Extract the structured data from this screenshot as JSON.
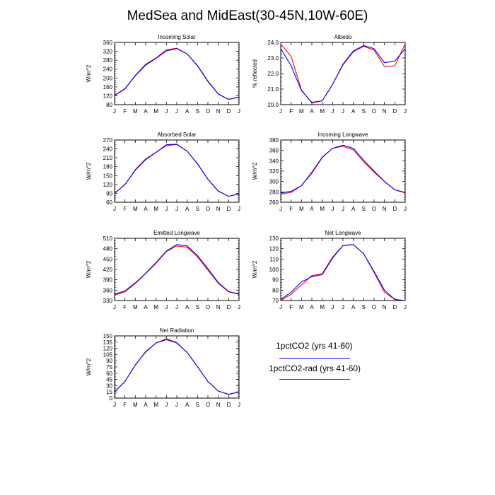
{
  "title": "MedSea and MidEast(30-45N,10W-60E)",
  "legend": [
    {
      "label": "1pctCO2 (yrs 41-60)",
      "color": "#0000ff"
    },
    {
      "label": "1pctCO2-rad (yrs 41-60)",
      "color": "#ff0000"
    }
  ],
  "chart_data": [
    {
      "type": "line",
      "title": "Incoming Solar",
      "ylabel": "W/m^2",
      "categories": [
        "J",
        "F",
        "M",
        "A",
        "M",
        "J",
        "J",
        "A",
        "S",
        "O",
        "N",
        "D",
        "J"
      ],
      "ylim": [
        80,
        360
      ],
      "yticks": [
        "80",
        "120",
        "160",
        "200",
        "240",
        "280",
        "320",
        "360"
      ],
      "series": [
        {
          "name": "1pctCO2 (yrs 41-60)",
          "color": "#0000ff",
          "values": [
            122,
            152,
            210,
            258,
            288,
            322,
            332,
            308,
            256,
            186,
            128,
            104,
            114
          ]
        },
        {
          "name": "1pctCO2-rad (yrs 41-60)",
          "color": "#ff0000",
          "values": [
            121,
            150,
            212,
            262,
            290,
            327,
            334,
            308,
            254,
            184,
            127,
            104,
            114
          ]
        }
      ]
    },
    {
      "type": "line",
      "title": "Albedo",
      "ylabel": "% reflected",
      "categories": [
        "J",
        "F",
        "M",
        "A",
        "M",
        "J",
        "J",
        "A",
        "S",
        "O",
        "N",
        "D",
        "J"
      ],
      "ylim": [
        20.0,
        24.0
      ],
      "yticks": [
        "20.0",
        "21.0",
        "22.0",
        "23.0",
        "24.0"
      ],
      "series": [
        {
          "name": "1pctCO2 (yrs 41-60)",
          "color": "#0000ff",
          "values": [
            23.6,
            22.5,
            20.9,
            20.15,
            20.25,
            21.3,
            22.6,
            23.45,
            23.8,
            23.6,
            22.7,
            22.8,
            23.6
          ]
        },
        {
          "name": "1pctCO2-rad (yrs 41-60)",
          "color": "#ff0000",
          "values": [
            23.9,
            23.1,
            20.95,
            20.1,
            20.25,
            21.3,
            22.55,
            23.4,
            23.75,
            23.5,
            22.45,
            22.5,
            23.9
          ]
        }
      ]
    },
    {
      "type": "line",
      "title": "Absorbed Solar",
      "ylabel": "W/m^2",
      "categories": [
        "J",
        "F",
        "M",
        "A",
        "M",
        "J",
        "J",
        "A",
        "S",
        "O",
        "N",
        "D",
        "J"
      ],
      "ylim": [
        60,
        270
      ],
      "yticks": [
        "60",
        "90",
        "120",
        "150",
        "180",
        "210",
        "240",
        "270"
      ],
      "series": [
        {
          "name": "1pctCO2 (yrs 41-60)",
          "color": "#0000ff",
          "values": [
            90,
            120,
            168,
            204,
            228,
            254,
            256,
            232,
            190,
            138,
            98,
            80,
            88
          ]
        },
        {
          "name": "1pctCO2-rad (yrs 41-60)",
          "color": "#ff0000",
          "values": [
            90,
            119,
            170,
            206,
            229,
            251,
            255,
            232,
            189,
            137,
            97,
            80,
            88
          ]
        }
      ]
    },
    {
      "type": "line",
      "title": "Incoming Longwave",
      "ylabel": "W/m^2",
      "categories": [
        "J",
        "F",
        "M",
        "A",
        "M",
        "J",
        "J",
        "A",
        "S",
        "O",
        "N",
        "D",
        "J"
      ],
      "ylim": [
        260,
        380
      ],
      "yticks": [
        "260",
        "280",
        "300",
        "320",
        "340",
        "360",
        "380"
      ],
      "series": [
        {
          "name": "1pctCO2 (yrs 41-60)",
          "color": "#0000ff",
          "values": [
            278,
            281,
            292,
            318,
            347,
            364,
            370,
            364,
            341,
            320,
            300,
            284,
            279
          ]
        },
        {
          "name": "1pctCO2-rad (yrs 41-60)",
          "color": "#ff0000",
          "values": [
            276,
            279,
            292,
            316,
            346,
            364,
            368,
            361,
            338,
            318,
            300,
            284,
            278
          ]
        }
      ]
    },
    {
      "type": "line",
      "title": "Emitted Longwave",
      "ylabel": "W/m^2",
      "categories": [
        "J",
        "F",
        "M",
        "A",
        "M",
        "J",
        "J",
        "A",
        "S",
        "O",
        "N",
        "D",
        "J"
      ],
      "ylim": [
        330,
        510
      ],
      "yticks": [
        "330",
        "360",
        "390",
        "420",
        "450",
        "480",
        "510"
      ],
      "series": [
        {
          "name": "1pctCO2 (yrs 41-60)",
          "color": "#0000ff",
          "values": [
            348,
            358,
            381,
            409,
            440,
            473,
            492,
            488,
            460,
            422,
            382,
            356,
            348
          ]
        },
        {
          "name": "1pctCO2-rad (yrs 41-60)",
          "color": "#ff0000",
          "values": [
            346,
            355,
            379,
            408,
            438,
            472,
            488,
            484,
            456,
            418,
            380,
            355,
            350
          ]
        }
      ]
    },
    {
      "type": "line",
      "title": "Net Longwave",
      "ylabel": "W/m^2",
      "categories": [
        "J",
        "F",
        "M",
        "A",
        "M",
        "J",
        "J",
        "A",
        "S",
        "O",
        "N",
        "D",
        "J"
      ],
      "ylim": [
        70,
        130
      ],
      "yticks": [
        "70",
        "80",
        "90",
        "100",
        "110",
        "120",
        "130"
      ],
      "series": [
        {
          "name": "1pctCO2 (yrs 41-60)",
          "color": "#0000ff",
          "values": [
            71,
            78,
            88,
            93,
            95,
            111,
            123,
            124,
            115,
            98,
            80,
            71,
            70
          ]
        },
        {
          "name": "1pctCO2-rad (yrs 41-60)",
          "color": "#ff0000",
          "values": [
            70,
            76,
            85,
            94,
            96,
            112,
            123,
            124,
            115,
            97,
            78,
            71,
            70
          ]
        }
      ]
    },
    {
      "type": "line",
      "title": "Net Radiation",
      "ylabel": "W/m^2",
      "categories": [
        "J",
        "F",
        "M",
        "A",
        "M",
        "J",
        "J",
        "A",
        "S",
        "O",
        "N",
        "D",
        "J"
      ],
      "ylim": [
        0,
        150
      ],
      "yticks": [
        "0",
        "15",
        "30",
        "45",
        "60",
        "75",
        "90",
        "105",
        "120",
        "135",
        "150"
      ],
      "series": [
        {
          "name": "1pctCO2 (yrs 41-60)",
          "color": "#0000ff",
          "values": [
            15,
            40,
            80,
            111,
            133,
            141,
            133,
            110,
            76,
            40,
            17,
            9,
            15
          ]
        },
        {
          "name": "1pctCO2-rad (yrs 41-60)",
          "color": "#ff0000",
          "values": [
            15,
            40,
            80,
            112,
            133,
            143,
            134,
            110,
            76,
            40,
            17,
            9,
            15
          ]
        }
      ]
    }
  ]
}
